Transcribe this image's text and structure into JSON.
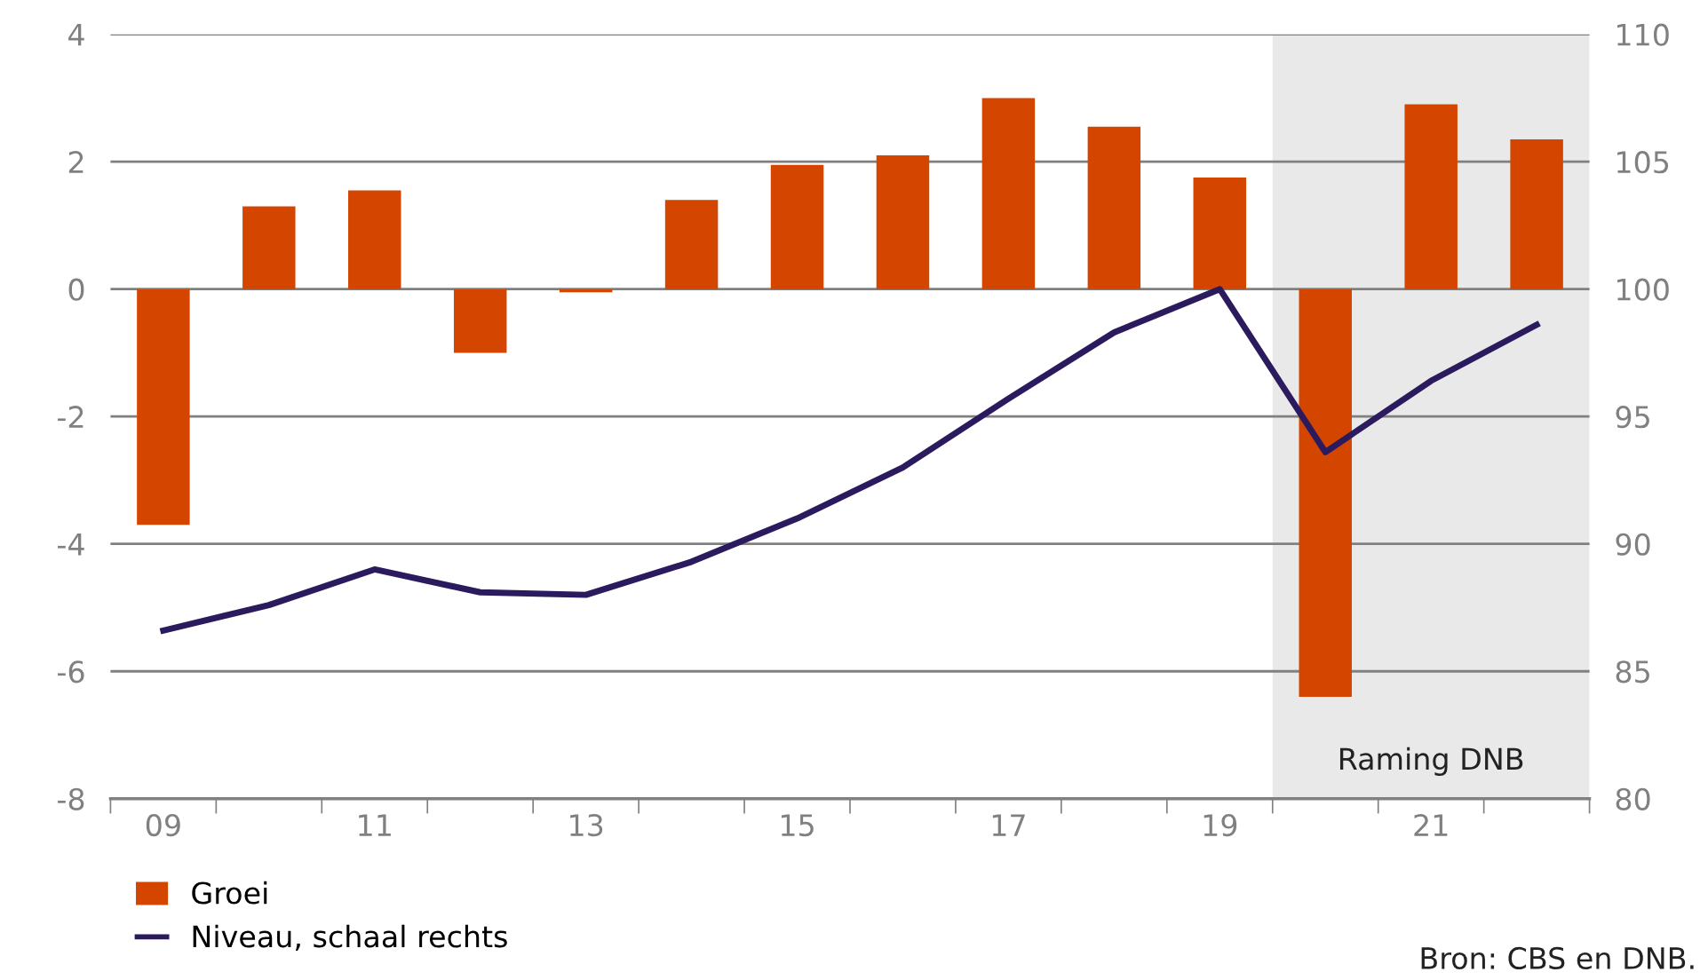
{
  "chart_data": {
    "type": "bar",
    "x": [
      2009,
      2010,
      2011,
      2012,
      2013,
      2014,
      2015,
      2016,
      2017,
      2018,
      2019,
      2020,
      2021,
      2022
    ],
    "series": [
      {
        "name": "Groei",
        "color": "#d44500",
        "values": [
          -3.7,
          1.3,
          1.55,
          -1.0,
          -0.05,
          1.4,
          1.95,
          2.1,
          3.0,
          2.55,
          1.75,
          -6.4,
          2.9,
          2.35
        ]
      },
      {
        "name": "Niveau, schaal rechts",
        "type": "line",
        "axis": "y2",
        "color": "#2b1a5e",
        "values": [
          86.6,
          87.6,
          89.0,
          88.1,
          88.0,
          89.3,
          91.0,
          93.0,
          95.7,
          98.3,
          100.0,
          93.6,
          96.4,
          98.6
        ]
      }
    ],
    "xlim": [
      2008.5,
      2022.5
    ],
    "xticks": [
      {
        "value": 2008.5,
        "label": null
      },
      {
        "value": 2009,
        "label": "09"
      },
      {
        "value": 2009.5,
        "label": null
      },
      {
        "value": 2010.5,
        "label": null
      },
      {
        "value": 2011,
        "label": "11"
      },
      {
        "value": 2011.5,
        "label": null
      },
      {
        "value": 2012.5,
        "label": null
      },
      {
        "value": 2013,
        "label": "13"
      },
      {
        "value": 2013.5,
        "label": null
      },
      {
        "value": 2014.5,
        "label": null
      },
      {
        "value": 2015,
        "label": "15"
      },
      {
        "value": 2015.5,
        "label": null
      },
      {
        "value": 2016.5,
        "label": null
      },
      {
        "value": 2017,
        "label": "17"
      },
      {
        "value": 2017.5,
        "label": null
      },
      {
        "value": 2018.5,
        "label": null
      },
      {
        "value": 2019,
        "label": "19"
      },
      {
        "value": 2019.5,
        "label": null
      },
      {
        "value": 2020.5,
        "label": null
      },
      {
        "value": 2021,
        "label": "21"
      },
      {
        "value": 2021.5,
        "label": null
      },
      {
        "value": 2022.5,
        "label": null
      }
    ],
    "ylim": [
      -8,
      4
    ],
    "yticks": [
      -8,
      -6,
      -4,
      -2,
      0,
      2,
      4
    ],
    "y2lim": [
      80,
      110
    ],
    "y2ticks": [
      80,
      85,
      90,
      95,
      100,
      105,
      110
    ],
    "bands": [
      {
        "axis": "x",
        "from": 2019.5,
        "to": 2022.5,
        "label": "Raming DNB",
        "color": "#e9e9e9"
      }
    ],
    "grid": "y",
    "legend": "bottom left",
    "annotations": [
      "Bron: CBS en DNB."
    ]
  }
}
